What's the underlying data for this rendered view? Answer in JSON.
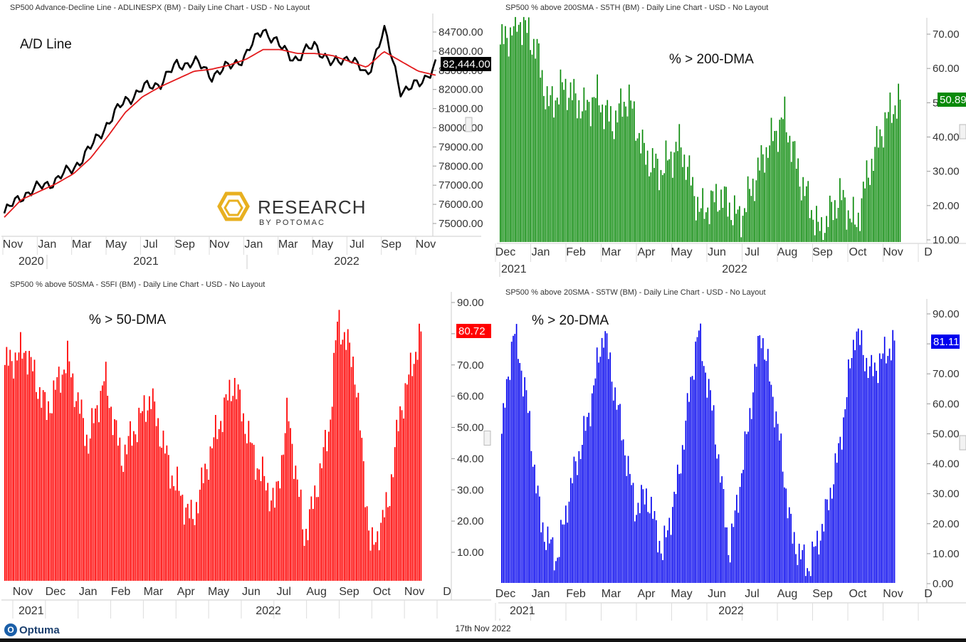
{
  "footer": {
    "date": "17th Nov 2022",
    "brand": "Optuma",
    "brand_icon": "optuma-logo-icon"
  },
  "colors": {
    "ad_line": "#000000",
    "ad_ma": "#e31a1c",
    "p200": "#0a8a0a",
    "p50": "#ff0000",
    "p20": "#0000ee"
  },
  "chart_data": [
    {
      "id": "ad",
      "type": "line",
      "header": "SP500 Advance-Decline Line - ADLINESPX (BM) - Daily Line Chart - USD - No Layout",
      "annotation": "A/D Line",
      "watermark": {
        "text": "RESEARCH",
        "subtext": "BY POTOMAC"
      },
      "ylim": [
        74700,
        84700
      ],
      "yticks": [
        "84700.00",
        "84000.00",
        "83000.00",
        "82000.00",
        "81000.00",
        "80000.00",
        "79000.00",
        "78000.00",
        "77000.00",
        "76000.00",
        "75000.00"
      ],
      "last_value_label": "82,444.00",
      "last_value": 82444,
      "xticks": [
        "Nov",
        "Jan",
        "Mar",
        "May",
        "Jul",
        "Sep",
        "Nov",
        "Jan",
        "Mar",
        "May",
        "Jul",
        "Sep",
        "Nov"
      ],
      "years": [
        "2020",
        "2021",
        "2022"
      ],
      "series": [
        {
          "role": "line",
          "x": [
            0,
            4,
            8,
            12,
            16,
            20,
            24,
            28,
            32,
            36,
            40,
            44,
            48,
            52,
            56,
            60,
            64,
            68,
            72,
            76,
            80,
            84,
            88,
            92,
            96,
            100
          ],
          "values": [
            74900,
            75800,
            76200,
            76600,
            77200,
            78200,
            79500,
            80600,
            81200,
            81500,
            82400,
            82600,
            81900,
            82300,
            82900,
            84300,
            83300,
            82700,
            83500,
            82400,
            82900,
            81800,
            84200,
            81100,
            81400,
            82444
          ]
        },
        {
          "role": "ma",
          "x": [
            0,
            4,
            8,
            12,
            16,
            20,
            24,
            28,
            32,
            36,
            40,
            44,
            48,
            52,
            56,
            60,
            64,
            68,
            72,
            76,
            80,
            84,
            88,
            92,
            96,
            100
          ],
          "values": [
            74700,
            75600,
            76000,
            76400,
            76900,
            77700,
            78800,
            80000,
            80800,
            81300,
            81700,
            82100,
            82200,
            82400,
            82700,
            83200,
            83200,
            83000,
            83000,
            82900,
            82600,
            82300,
            83100,
            82600,
            82100,
            81900
          ]
        }
      ]
    },
    {
      "id": "p200",
      "type": "bar",
      "header": "SP500 % above 200SMA - S5TH (BM) - Daily Line Chart - USD - No Layout",
      "annotation": "% > 200-DMA",
      "ylim": [
        10,
        75
      ],
      "yticks": [
        "70.00",
        "60.00",
        "50.00",
        "40.00",
        "30.00",
        "20.00",
        "10.00"
      ],
      "last_value_label": "50.89",
      "last_value": 50.89,
      "xticks": [
        "Dec",
        "Jan",
        "Feb",
        "Mar",
        "Apr",
        "May",
        "Jun",
        "Jul",
        "Aug",
        "Sep",
        "Oct",
        "Nov",
        "D"
      ],
      "years": [
        "2021",
        "2022"
      ],
      "anchors": {
        "x": [
          0,
          5,
          9,
          12,
          16,
          21,
          24,
          28,
          32,
          36,
          40,
          45,
          50,
          55,
          60,
          66,
          71,
          75,
          80,
          85,
          89,
          91,
          93,
          96,
          100
        ],
        "values": [
          67,
          74,
          66,
          49,
          55,
          48,
          52,
          44,
          52,
          35,
          30,
          38,
          18,
          23,
          16,
          35,
          46,
          28,
          12,
          23,
          14,
          25,
          33,
          44,
          52
        ]
      }
    },
    {
      "id": "p50",
      "type": "bar",
      "header": "SP500 % above 50SMA - S5FI (BM) - Daily Line Chart - USD - No Layout",
      "annotation": "% > 50-DMA",
      "ylim": [
        0,
        92
      ],
      "yticks": [
        "90.00",
        "80.00",
        "70.00",
        "60.00",
        "50.00",
        "40.00",
        "30.00",
        "20.00",
        "10.00"
      ],
      "last_value_label": "80.72",
      "last_value": 80.72,
      "xticks": [
        "Nov",
        "Dec",
        "Jan",
        "Feb",
        "Mar",
        "Apr",
        "May",
        "Jun",
        "Jul",
        "Aug",
        "Sep",
        "Oct",
        "Nov",
        "D"
      ],
      "years": [
        "2021",
        "2022"
      ],
      "anchors": {
        "x": [
          0,
          5,
          10,
          15,
          20,
          24,
          28,
          35,
          40,
          45,
          50,
          55,
          60,
          65,
          68,
          72,
          74,
          78,
          80,
          84,
          86,
          88,
          92,
          95,
          100
        ],
        "values": [
          70,
          75,
          55,
          72,
          45,
          66,
          40,
          60,
          35,
          20,
          45,
          65,
          40,
          25,
          55,
          15,
          25,
          50,
          85,
          70,
          40,
          10,
          25,
          55,
          81
        ]
      }
    },
    {
      "id": "p20",
      "type": "bar",
      "header": "SP500 % above 20SMA - S5TW (BM) - Daily Line Chart - USD - No Layout",
      "annotation": "% > 20-DMA",
      "ylim": [
        0,
        93
      ],
      "yticks": [
        "90.00",
        "80.00",
        "70.00",
        "60.00",
        "50.00",
        "40.00",
        "30.00",
        "20.00",
        "10.00",
        "0.00"
      ],
      "last_value_label": "81.11",
      "last_value": 81.11,
      "xticks": [
        "Dec",
        "Jan",
        "Feb",
        "Mar",
        "Apr",
        "May",
        "Jun",
        "Jul",
        "Aug",
        "Sep",
        "Oct",
        "Nov",
        "D"
      ],
      "years": [
        "2021",
        "2022"
      ],
      "anchors": {
        "x": [
          0,
          3,
          6,
          10,
          14,
          18,
          22,
          26,
          30,
          34,
          37,
          41,
          45,
          50,
          54,
          58,
          62,
          66,
          70,
          74,
          78,
          82,
          86,
          90,
          94,
          100
        ],
        "values": [
          50,
          85,
          65,
          20,
          8,
          35,
          55,
          85,
          55,
          25,
          30,
          10,
          35,
          85,
          55,
          10,
          45,
          85,
          55,
          15,
          5,
          20,
          45,
          85,
          70,
          81
        ]
      }
    }
  ]
}
